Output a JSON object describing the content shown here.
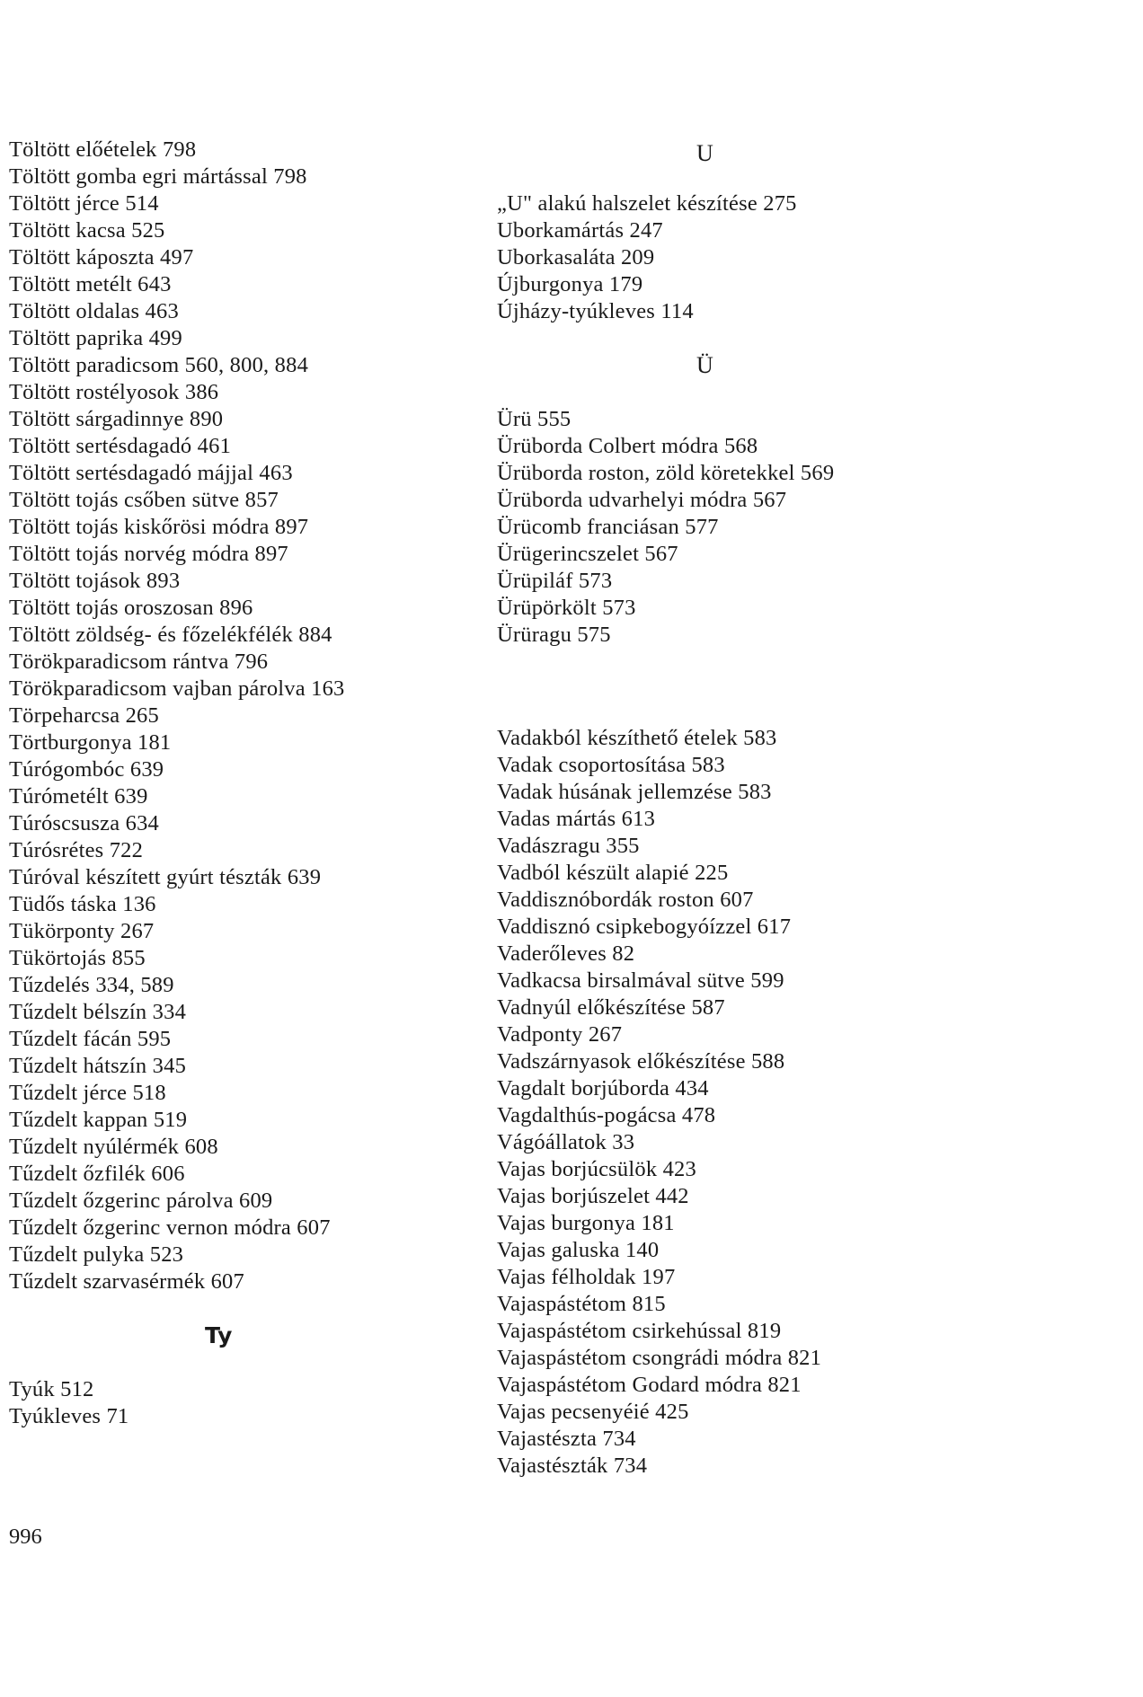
{
  "left_column": {
    "entries": [
      "Töltött előételek 798",
      "Töltött gomba egri mártással 798",
      "Töltött jérce 514",
      "Töltött kacsa 525",
      "Töltött káposzta 497",
      "Töltött metélt 643",
      "Töltött oldalas 463",
      "Töltött paprika 499",
      "Töltött paradicsom 560, 800, 884",
      "Töltött rostélyosok 386",
      "Töltött sárgadinnye 890",
      "Töltött sertésdagadó 461",
      "Töltött sertésdagadó májjal 463",
      "Töltött tojás csőben sütve 857",
      "Töltött tojás kiskőrösi módra 897",
      "Töltött tojás norvég módra 897",
      "Töltött tojások 893",
      "Töltött tojás oroszosan 896",
      "Töltött zöldség- és főzelékfélék 884",
      "Törökparadicsom rántva 796",
      "Törökparadicsom vajban párolva 163",
      "Törpeharcsa 265",
      "Törtburgonya 181",
      "Túrógombóc 639",
      "Túrómetélt 639",
      "Túróscsusza 634",
      "Túrósrétes 722",
      "Túróval készített gyúrt tészták 639",
      "Tüdős táska 136",
      "Tükörponty 267",
      "Tükörtojás 855",
      "Tűzdelés 334, 589",
      "Tűzdelt bélszín 334",
      "Tűzdelt fácán 595",
      "Tűzdelt hátszín 345",
      "Tűzdelt jérce 518",
      "Tűzdelt kappan 519",
      "Tűzdelt nyúlérmék 608",
      "Tűzdelt őzfilék 606",
      "Tűzdelt őzgerinc párolva 609",
      "Tűzdelt őzgerinc vernon módra 607",
      "Tűzdelt pulyka 523",
      "Tűzdelt szarvasérmék 607"
    ],
    "section_ty": {
      "heading": "Ty",
      "entries": [
        "Tyúk 512",
        "Tyúkleves 71"
      ]
    }
  },
  "right_column": {
    "section_u": {
      "heading": "U",
      "entries": [
        "„U\" alakú halszelet készítése 275",
        "Uborkamártás 247",
        "Uborkasaláta 209",
        "Újburgonya 179",
        "Újházy-tyúkleves 114"
      ]
    },
    "section_uu": {
      "heading": "Ü",
      "entries": [
        "Ürü 555",
        "Ürüborda Colbert módra 568",
        "Ürüborda roston, zöld köretekkel 569",
        "Ürüborda udvarhelyi módra 567",
        "Ürücomb franciásan 577",
        "Ürügerincszelet 567",
        "Ürüpiláf 573",
        "Ürüpörkölt 573",
        "Ürüragu 575"
      ]
    },
    "section_v": {
      "entries": [
        "Vadakból készíthető ételek 583",
        "Vadak csoportosítása 583",
        "Vadak húsának jellemzése 583",
        "Vadas mártás 613",
        "Vadászragu 355",
        "Vadból készült alapié 225",
        "Vaddisznóbordák roston 607",
        "Vaddisznó csipkebogyóízzel 617",
        "Vaderőleves 82",
        "Vadkacsa birsalmával sütve 599",
        "Vadnyúl előkészítése 587",
        "Vadponty 267",
        "Vadszárnyasok előkészítése 588",
        "Vagdalt borjúborda 434",
        "Vagdalthús-pogácsa 478",
        "Vágóállatok 33",
        "Vajas borjúcsülök 423",
        "Vajas borjúszelet 442",
        "Vajas burgonya 181",
        "Vajas galuska 140",
        "Vajas félholdak 197",
        "Vajaspástétom 815",
        "Vajaspástétom csirkehússal 819",
        "Vajaspástétom csongrádi módra 821",
        "Vajaspástétom Godard módra 821",
        "Vajas pecsenyéié 425",
        "Vajastészta 734",
        "Vajastészták 734"
      ]
    }
  },
  "page_number": "996"
}
